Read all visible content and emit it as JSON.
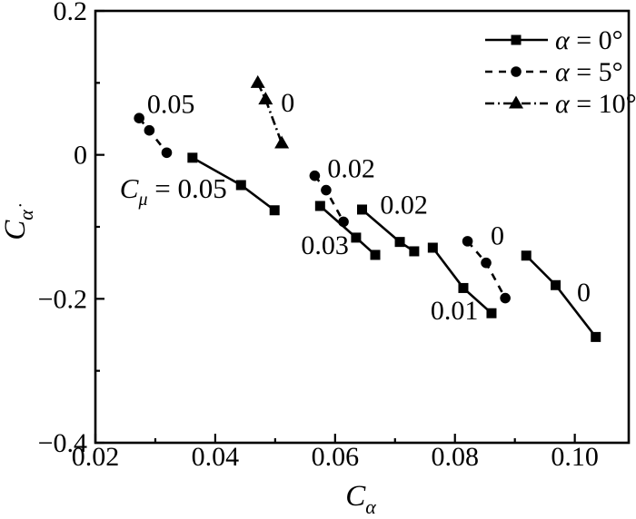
{
  "figure": {
    "background": "#ffffff",
    "ink": "#000000"
  },
  "chart_data": {
    "type": "line",
    "title": "",
    "xlabel": {
      "base": "C",
      "sub": "α"
    },
    "ylabel": {
      "base": "C",
      "sub": "α̇"
    },
    "xlim": [
      0.02,
      0.109
    ],
    "ylim": [
      -0.4,
      0.2
    ],
    "x_major_ticks": [
      0.02,
      0.04,
      0.06,
      0.08,
      0.1
    ],
    "x_tick_labels": [
      "0.02",
      "0.04",
      "0.06",
      "0.08",
      "0.10"
    ],
    "x_minor_ticks": [
      0.03,
      0.05,
      0.07,
      0.09
    ],
    "y_major_ticks": [
      0.2,
      0,
      -0.2,
      -0.4
    ],
    "y_tick_labels": [
      "0.2",
      "0",
      "−0.2",
      "−0.4"
    ],
    "y_minor_ticks": [
      0.1,
      -0.1,
      -0.3
    ],
    "grid": false,
    "legend": {
      "position": "top-right",
      "items": [
        {
          "label": "α = 0°",
          "marker": "square",
          "line": "solid"
        },
        {
          "label": "α = 5°",
          "marker": "circle",
          "line": "dashed"
        },
        {
          "label": "α = 10°",
          "marker": "triangle",
          "line": "dashdot"
        }
      ]
    },
    "series": [
      {
        "id": "alpha0-cmu0.05",
        "alpha": "0°",
        "c_mu": "0.05",
        "marker": "square",
        "line": "solid",
        "points": [
          [
            0.0362,
            -0.004
          ],
          [
            0.0443,
            -0.042
          ],
          [
            0.0499,
            -0.077
          ]
        ]
      },
      {
        "id": "alpha0-cmu0.03",
        "alpha": "0°",
        "c_mu": "0.03",
        "marker": "square",
        "line": "solid",
        "points": [
          [
            0.0575,
            -0.071
          ],
          [
            0.0635,
            -0.115
          ],
          [
            0.0667,
            -0.139
          ]
        ]
      },
      {
        "id": "alpha0-cmu0.02",
        "alpha": "0°",
        "c_mu": "0.02",
        "marker": "square",
        "line": "solid",
        "points": [
          [
            0.0645,
            -0.076
          ],
          [
            0.0708,
            -0.121
          ],
          [
            0.0732,
            -0.134
          ]
        ]
      },
      {
        "id": "alpha0-cmu0.01",
        "alpha": "0°",
        "c_mu": "0.01",
        "marker": "square",
        "line": "solid",
        "points": [
          [
            0.0763,
            -0.129
          ],
          [
            0.0814,
            -0.185
          ],
          [
            0.0861,
            -0.22
          ]
        ]
      },
      {
        "id": "alpha0-cmu0",
        "alpha": "0°",
        "c_mu": "0",
        "marker": "square",
        "line": "solid",
        "points": [
          [
            0.0919,
            -0.14
          ],
          [
            0.0968,
            -0.181
          ],
          [
            0.1035,
            -0.253
          ]
        ]
      },
      {
        "id": "alpha5-cmu0.05",
        "alpha": "5°",
        "c_mu": "0.05",
        "marker": "circle",
        "line": "dashed",
        "points": [
          [
            0.0273,
            0.051
          ],
          [
            0.029,
            0.034
          ],
          [
            0.0319,
            0.003
          ]
        ]
      },
      {
        "id": "alpha5-cmu0.02",
        "alpha": "5°",
        "c_mu": "0.02",
        "marker": "circle",
        "line": "dashed",
        "points": [
          [
            0.0566,
            -0.029
          ],
          [
            0.0585,
            -0.049
          ],
          [
            0.0614,
            -0.093
          ]
        ]
      },
      {
        "id": "alpha5-cmu0",
        "alpha": "5°",
        "c_mu": "0",
        "marker": "circle",
        "line": "dashed",
        "points": [
          [
            0.0821,
            -0.12
          ],
          [
            0.0852,
            -0.15
          ],
          [
            0.0884,
            -0.199
          ]
        ]
      },
      {
        "id": "alpha10-cmu0",
        "alpha": "10°",
        "c_mu": "0",
        "marker": "triangle",
        "line": "dashdot",
        "points": [
          [
            0.0471,
            0.1
          ],
          [
            0.0484,
            0.077
          ],
          [
            0.0511,
            0.016
          ]
        ]
      }
    ],
    "annotations": [
      {
        "text": "0.05",
        "x": 0.0326,
        "y": 0.071
      },
      {
        "base": "C",
        "sub": "μ",
        "suffix": " = 0.05",
        "x": 0.033,
        "y": -0.047
      },
      {
        "text": "0",
        "x": 0.0521,
        "y": 0.073
      },
      {
        "text": "0.02",
        "x": 0.0627,
        "y": -0.019
      },
      {
        "text": "0.02",
        "x": 0.0715,
        "y": -0.069
      },
      {
        "text": "0.03",
        "x": 0.0583,
        "y": -0.125
      },
      {
        "text": "0.01",
        "x": 0.0799,
        "y": -0.216
      },
      {
        "text": "0",
        "x": 0.0871,
        "y": -0.112
      },
      {
        "text": "0",
        "x": 0.1015,
        "y": -0.191
      }
    ]
  }
}
